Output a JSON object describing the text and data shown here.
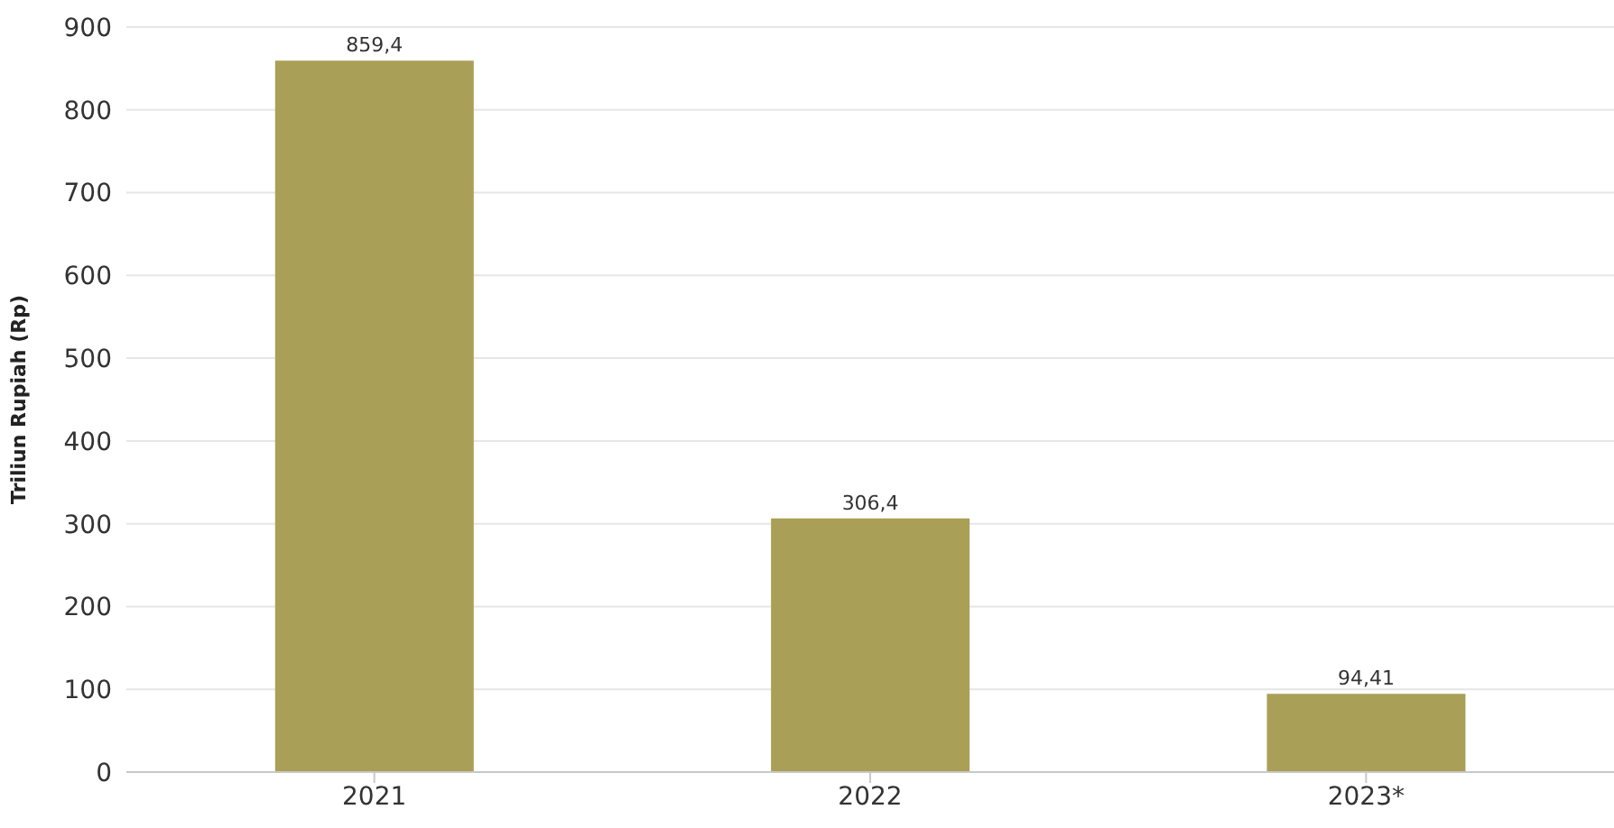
{
  "chart_data": {
    "type": "bar",
    "ylabel": "Triliun Rupiah (Rp)",
    "categories": [
      "2021",
      "2022",
      "2023*"
    ],
    "values": [
      859.4,
      306.4,
      94.41
    ],
    "value_labels": [
      "859,4",
      "306,4",
      "94,41"
    ],
    "color": "#aa9f56",
    "ylim": [
      0,
      900
    ],
    "yticks": [
      0,
      100,
      200,
      300,
      400,
      500,
      600,
      700,
      800,
      900
    ],
    "grid": "y"
  }
}
